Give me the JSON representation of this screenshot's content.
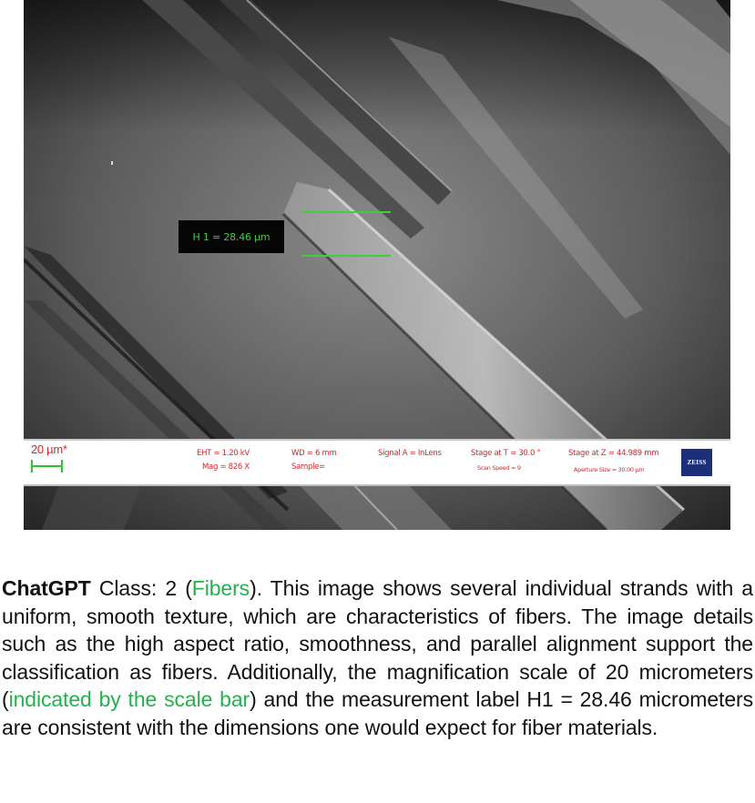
{
  "figure": {
    "measurement_label": "H 1 = 28.46 µm",
    "info_bar": {
      "scale_text": "20 µm*",
      "eht": "EHT =  1.20 kV",
      "mag": "Mag =   826 X",
      "wd": "WD =    6 mm",
      "sample": "Sample=",
      "signal": "Signal A = InLens",
      "stage_t": "Stage at T =  30.0 °",
      "scan_speed": "Scan Speed = 9",
      "stage_z": "Stage at Z = 44.989 mm",
      "aperture": "Aperture Size = 30.00 µm",
      "logo": "ZEISS"
    },
    "colors": {
      "measurement_green": "#38d238",
      "infobar_text": "#d4262a",
      "logo_blue": "#1b2f7a"
    }
  },
  "caption": {
    "bold_lead": "ChatGPT",
    "class_prefix": " Class: 2 (",
    "class_name": "Fibers",
    "after_class": "). This image shows several individual strands with a uniform, smooth texture, which are characteristics of fibers. The image details such as the high aspect ratio, smoothness, and parallel alignment support the classification as fibers. Additionally, the magnification scale of 20 micrometers (",
    "highlight": "indicated by the scale bar",
    "tail": ") and the measurement label H1 = 28.46 micrometers are consistent with the dimensions one would expect for fiber materials.",
    "highlight_color": "#22b14c"
  }
}
